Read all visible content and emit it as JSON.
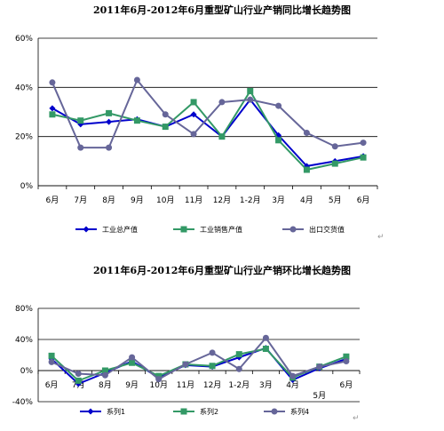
{
  "chart_data": [
    {
      "type": "line",
      "title": "2011年6月-2012年6月重型矿山行业产销同比增长趋势图",
      "categories": [
        "6月",
        "7月",
        "8月",
        "9月",
        "10月",
        "11月",
        "12月",
        "1-2月",
        "3月",
        "4月",
        "5月",
        "6月"
      ],
      "y_ticks": [
        "0%",
        "20%",
        "40%",
        "60%"
      ],
      "ylim": [
        0,
        60
      ],
      "legend_position": "bottom",
      "series": [
        {
          "name": "工业总产值",
          "color": "#0000cc",
          "marker": "diamond",
          "values": [
            31.5,
            25,
            26,
            27,
            24,
            29,
            20,
            35,
            20.5,
            8,
            10,
            12
          ]
        },
        {
          "name": "工业销售产值",
          "color": "#339966",
          "marker": "square",
          "values": [
            29,
            26.5,
            29.5,
            26.5,
            24,
            34,
            20,
            38.5,
            18.5,
            6.5,
            9,
            11.5
          ]
        },
        {
          "name": "出口交货值",
          "color": "#666699",
          "marker": "circle",
          "values": [
            42,
            15.5,
            15.5,
            43,
            29,
            21,
            34,
            35,
            32.5,
            21.5,
            16,
            17.5
          ]
        }
      ]
    },
    {
      "type": "line",
      "title": "2011年6月-2012年6月重型矿山行业产销环比增长趋势图",
      "categories": [
        "6月",
        "7月",
        "8月",
        "9月",
        "10月",
        "11月",
        "12月",
        "1-2月",
        "3月",
        "4月",
        "5月",
        "6月"
      ],
      "y_ticks": [
        "-40%",
        "0%",
        "40%",
        "80%"
      ],
      "ylim": [
        -40,
        80
      ],
      "legend_position": "bottom",
      "series": [
        {
          "name": "系列1",
          "color": "#0000cc",
          "marker": "diamond",
          "values": [
            15,
            -17,
            -3,
            12,
            -9,
            7,
            5,
            17,
            29,
            -12,
            3,
            15
          ]
        },
        {
          "name": "系列2",
          "color": "#339966",
          "marker": "square",
          "values": [
            19,
            -13,
            0,
            10,
            -7,
            8,
            6,
            21,
            28,
            -9,
            5,
            18
          ]
        },
        {
          "name": "系列4",
          "color": "#666699",
          "marker": "circle",
          "values": [
            11,
            -4,
            -6,
            17,
            -11,
            8,
            23,
            2,
            42,
            -7,
            5,
            12
          ]
        }
      ]
    }
  ]
}
